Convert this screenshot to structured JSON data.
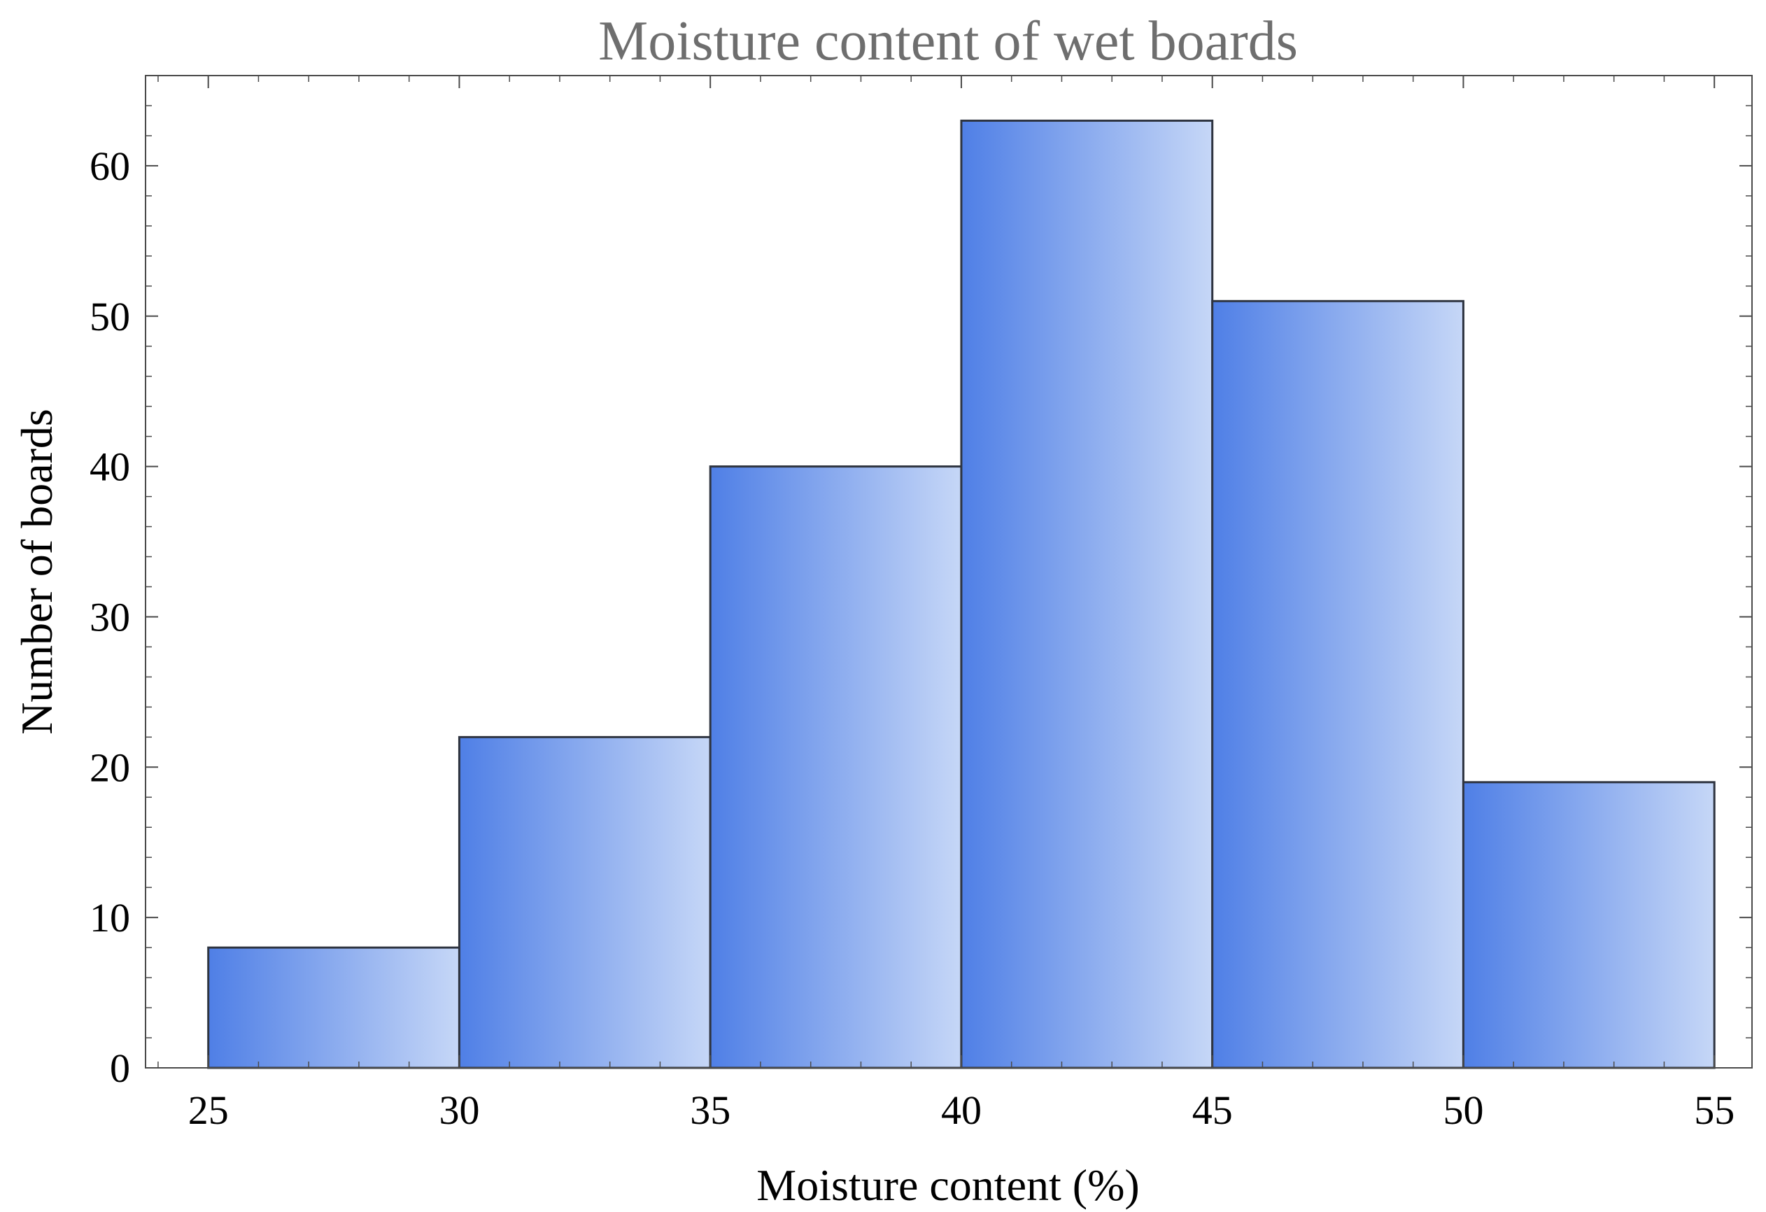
{
  "chart_data": {
    "type": "bar",
    "title": "Moisture content of wet boards",
    "xlabel": "Moisture content (%)",
    "ylabel": "Number of boards",
    "bins": [
      {
        "x0": 25,
        "x1": 30,
        "value": 8
      },
      {
        "x0": 30,
        "x1": 35,
        "value": 22
      },
      {
        "x0": 35,
        "x1": 40,
        "value": 40
      },
      {
        "x0": 40,
        "x1": 45,
        "value": 63
      },
      {
        "x0": 45,
        "x1": 50,
        "value": 51
      },
      {
        "x0": 50,
        "x1": 55,
        "value": 19
      }
    ],
    "xlim": [
      23.75,
      55.75
    ],
    "ylim": [
      0,
      66
    ],
    "xticks": [
      25,
      30,
      35,
      40,
      45,
      50,
      55
    ],
    "yticks": [
      0,
      10,
      20,
      30,
      40,
      50,
      60
    ],
    "grid": false,
    "bar_color_start": "#4f7fe6",
    "bar_color_end": "#c6d7f7",
    "bar_edge_color": "#2e3440"
  }
}
